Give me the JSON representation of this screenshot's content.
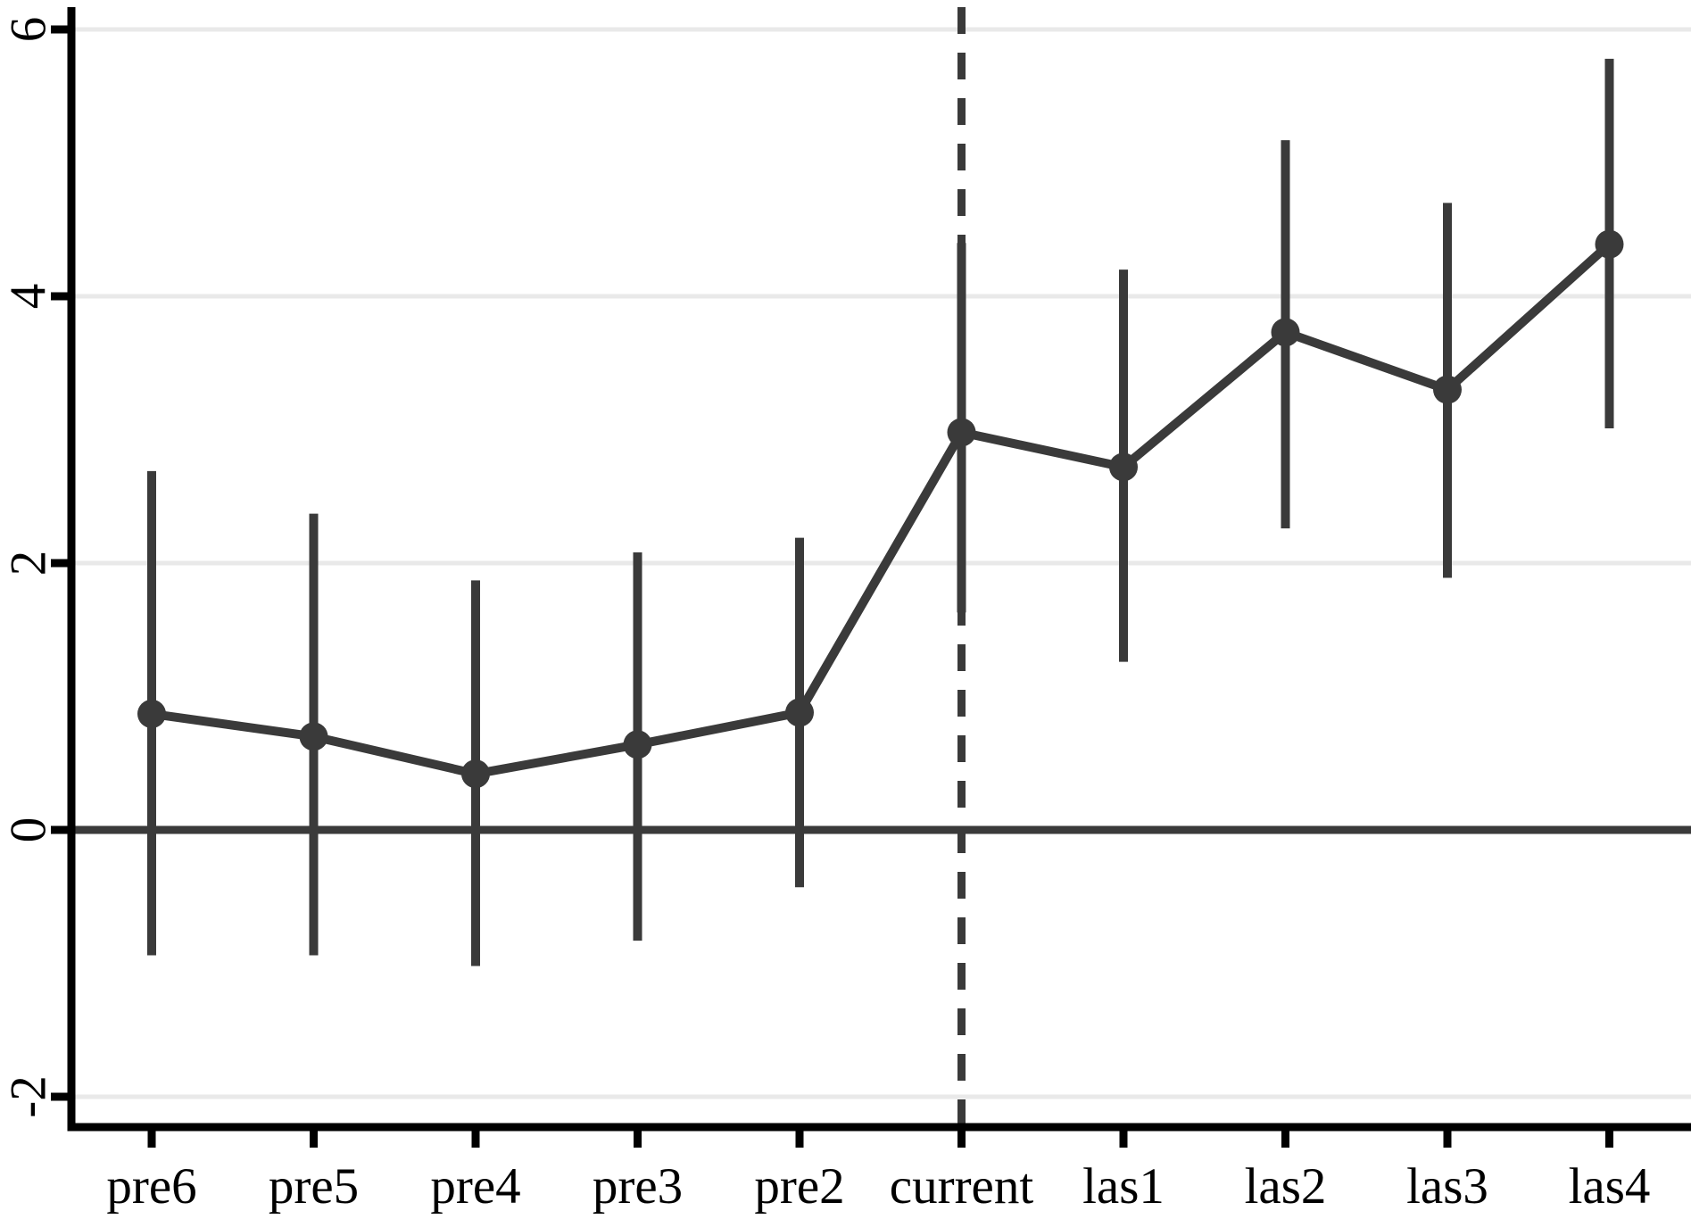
{
  "chart_data": {
    "type": "line",
    "title": "",
    "xlabel": "",
    "ylabel": "",
    "categories": [
      "pre6",
      "pre5",
      "pre4",
      "pre3",
      "pre2",
      "current",
      "las1",
      "las2",
      "las3",
      "las4"
    ],
    "series": [
      {
        "name": "point-estimate",
        "values": [
          0.87,
          0.7,
          0.42,
          0.64,
          0.88,
          2.98,
          2.72,
          3.73,
          3.3,
          4.39
        ]
      }
    ],
    "ci_upper": [
      2.69,
      2.37,
      1.87,
      2.08,
      2.19,
      4.4,
      4.2,
      5.17,
      4.7,
      5.78
    ],
    "ci_lower": [
      -0.94,
      -0.94,
      -1.02,
      -0.83,
      -0.43,
      1.63,
      1.26,
      2.26,
      1.89,
      3.01
    ],
    "y_ticks": [
      -2,
      0,
      2,
      4,
      6
    ],
    "y_tick_labels": [
      "-2",
      "0",
      "2",
      "4",
      "6"
    ],
    "ylim": [
      -2.22,
      6.17
    ],
    "reference_line_y": 0,
    "vline_category": "current",
    "grid": "horizontal-light",
    "legend": "none",
    "error_bar_caps": false
  },
  "colors": {
    "data": "#3a3a3a",
    "axis": "#000000",
    "gridline": "#e9e9e9",
    "background": "#ffffff"
  }
}
